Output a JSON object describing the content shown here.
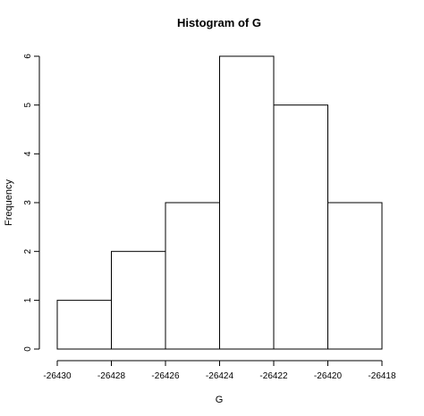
{
  "chart_data": {
    "type": "bar",
    "title": "Histogram of G",
    "xlabel": "G",
    "ylabel": "Frequency",
    "bins": [
      {
        "start": -26430,
        "end": -26428,
        "count": 1
      },
      {
        "start": -26428,
        "end": -26426,
        "count": 2
      },
      {
        "start": -26426,
        "end": -26424,
        "count": 3
      },
      {
        "start": -26424,
        "end": -26422,
        "count": 6
      },
      {
        "start": -26422,
        "end": -26420,
        "count": 5
      },
      {
        "start": -26420,
        "end": -26418,
        "count": 3
      }
    ],
    "xlim": [
      -26430,
      -26418
    ],
    "ylim": [
      0,
      6
    ],
    "x_ticks": [
      -26430,
      -26428,
      -26426,
      -26424,
      -26422,
      -26420,
      -26418
    ],
    "y_ticks": [
      0,
      1,
      2,
      3,
      4,
      5,
      6
    ],
    "grid": false
  }
}
